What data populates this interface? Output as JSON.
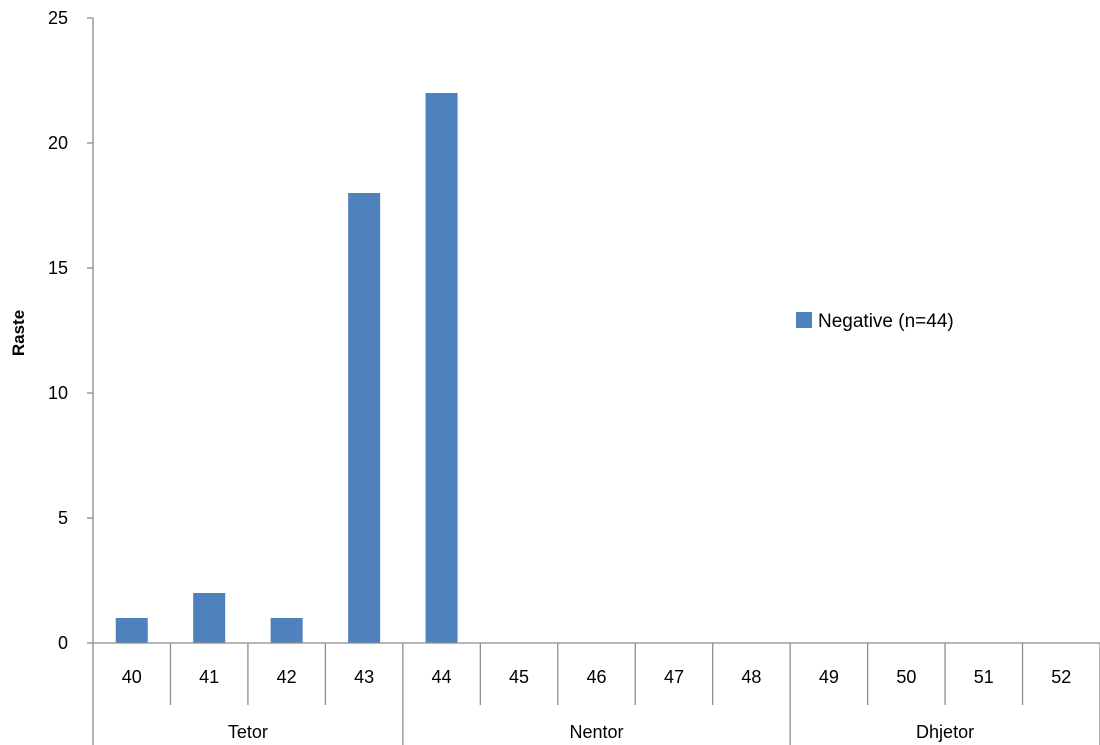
{
  "chart_data": {
    "type": "bar",
    "title": "",
    "xlabel": "",
    "ylabel": "Raste",
    "ylim": [
      0,
      25
    ],
    "yticks": [
      0,
      5,
      10,
      15,
      20,
      25
    ],
    "grid": false,
    "legend_position": "right",
    "categories": [
      "40",
      "41",
      "42",
      "43",
      "44",
      "45",
      "46",
      "47",
      "48",
      "49",
      "50",
      "51",
      "52"
    ],
    "groups": [
      {
        "label": "Tetor",
        "categories": [
          "40",
          "41",
          "42",
          "43"
        ]
      },
      {
        "label": "Nentor",
        "categories": [
          "44",
          "45",
          "46",
          "47",
          "48"
        ]
      },
      {
        "label": "Dhjetor",
        "categories": [
          "49",
          "50",
          "51",
          "52"
        ]
      }
    ],
    "series": [
      {
        "name": "Negative (n=44)",
        "color": "#4f81bd",
        "values": [
          1,
          2,
          1,
          18,
          22,
          0,
          0,
          0,
          0,
          0,
          0,
          0,
          0
        ]
      }
    ]
  }
}
